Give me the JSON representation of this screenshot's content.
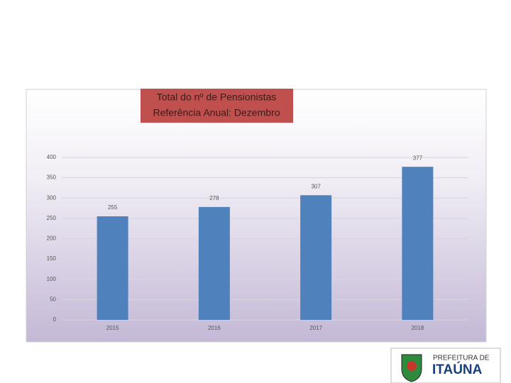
{
  "chart_data": {
    "type": "bar",
    "title": "Total do nº  de Pensionistas",
    "subtitle": "Referência Anual: Dezembro",
    "categories": [
      "2015",
      "2016",
      "2017",
      "2018"
    ],
    "values": [
      255,
      278,
      307,
      377
    ],
    "color": "#4f81bd",
    "ylim": [
      0,
      400
    ],
    "yticks": [
      0,
      50,
      100,
      150,
      200,
      250,
      300,
      350,
      400
    ],
    "grid": true
  },
  "logo": {
    "line1": "PREFEITURA DE",
    "line2": "ITAÚNA"
  }
}
